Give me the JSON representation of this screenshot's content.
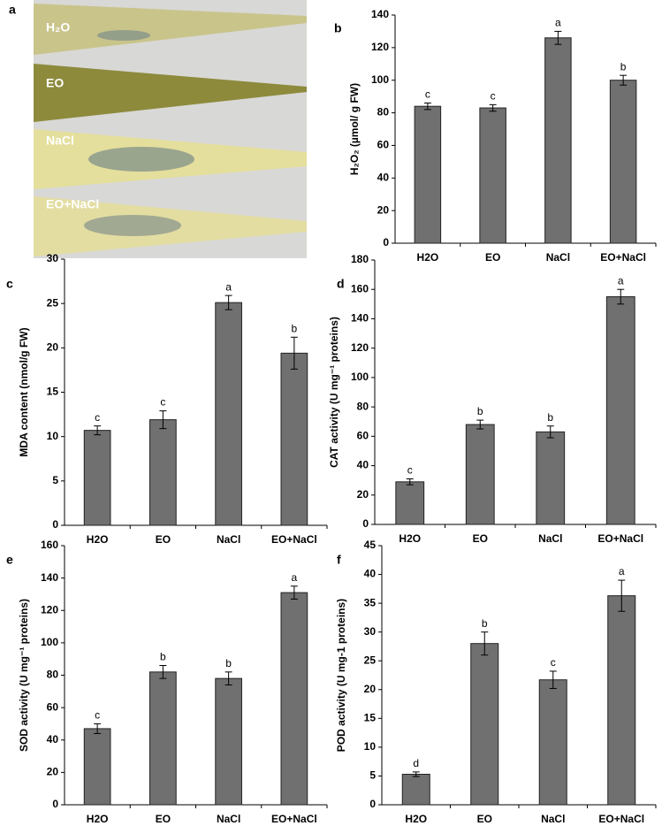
{
  "chart_data": [
    {
      "type": "image",
      "panel_label": "a",
      "labels": [
        "H₂O",
        "EO",
        "NaCl",
        "EO+NaCl"
      ]
    },
    {
      "type": "bar",
      "panel_label": "b",
      "ylabel": "H₂O₂ (µmol/ g FW)",
      "categories": [
        "H2O",
        "EO",
        "NaCl",
        "EO+NaCl"
      ],
      "values": [
        84,
        83,
        126,
        100
      ],
      "errors": [
        2,
        2,
        4,
        3
      ],
      "annotations": [
        "c",
        "c",
        "a",
        "b"
      ],
      "color": "#707070",
      "ylim": [
        0,
        140
      ],
      "yticks": [
        0,
        20,
        40,
        60,
        80,
        100,
        120,
        140
      ]
    },
    {
      "type": "bar",
      "panel_label": "c",
      "ylabel": "MDA content (nmol/g FW)",
      "categories": [
        "H2O",
        "EO",
        "NaCl",
        "EO+NaCl"
      ],
      "values": [
        10.7,
        11.9,
        25.1,
        19.4
      ],
      "errors": [
        0.5,
        1,
        0.8,
        1.8
      ],
      "annotations": [
        "c",
        "c",
        "a",
        "b"
      ],
      "color": "#707070",
      "ylim": [
        0,
        30
      ],
      "yticks": [
        0,
        5,
        10,
        15,
        20,
        25,
        30
      ]
    },
    {
      "type": "bar",
      "panel_label": "d",
      "ylabel": "CAT activity (U mg⁻¹ proteins)",
      "categories": [
        "H2O",
        "EO",
        "NaCl",
        "EO+NaCl"
      ],
      "values": [
        29,
        68,
        63,
        155
      ],
      "errors": [
        2,
        3,
        4,
        5
      ],
      "annotations": [
        "c",
        "b",
        "b",
        "a"
      ],
      "color": "#707070",
      "ylim": [
        0,
        180
      ],
      "yticks": [
        0,
        20,
        40,
        60,
        80,
        100,
        120,
        140,
        160,
        180
      ]
    },
    {
      "type": "bar",
      "panel_label": "e",
      "ylabel": "SOD activity (U mg⁻¹ proteins)",
      "categories": [
        "H2O",
        "EO",
        "NaCl",
        "EO+NaCl"
      ],
      "values": [
        47,
        82,
        78,
        131
      ],
      "errors": [
        3,
        4,
        4,
        4
      ],
      "annotations": [
        "c",
        "b",
        "b",
        "a"
      ],
      "color": "#707070",
      "ylim": [
        0,
        160
      ],
      "yticks": [
        0,
        20,
        40,
        60,
        80,
        100,
        120,
        140,
        160
      ]
    },
    {
      "type": "bar",
      "panel_label": "f",
      "ylabel": "POD activity (U mg-1 proteins)",
      "categories": [
        "H2O",
        "EO",
        "NaCl",
        "EO+NaCl"
      ],
      "values": [
        5.3,
        28,
        21.7,
        36.3
      ],
      "errors": [
        0.4,
        2,
        1.5,
        2.7
      ],
      "annotations": [
        "d",
        "b",
        "c",
        "a"
      ],
      "color": "#707070",
      "ylim": [
        0,
        45
      ],
      "yticks": [
        0,
        5,
        10,
        15,
        20,
        25,
        30,
        35,
        40,
        45
      ]
    }
  ]
}
